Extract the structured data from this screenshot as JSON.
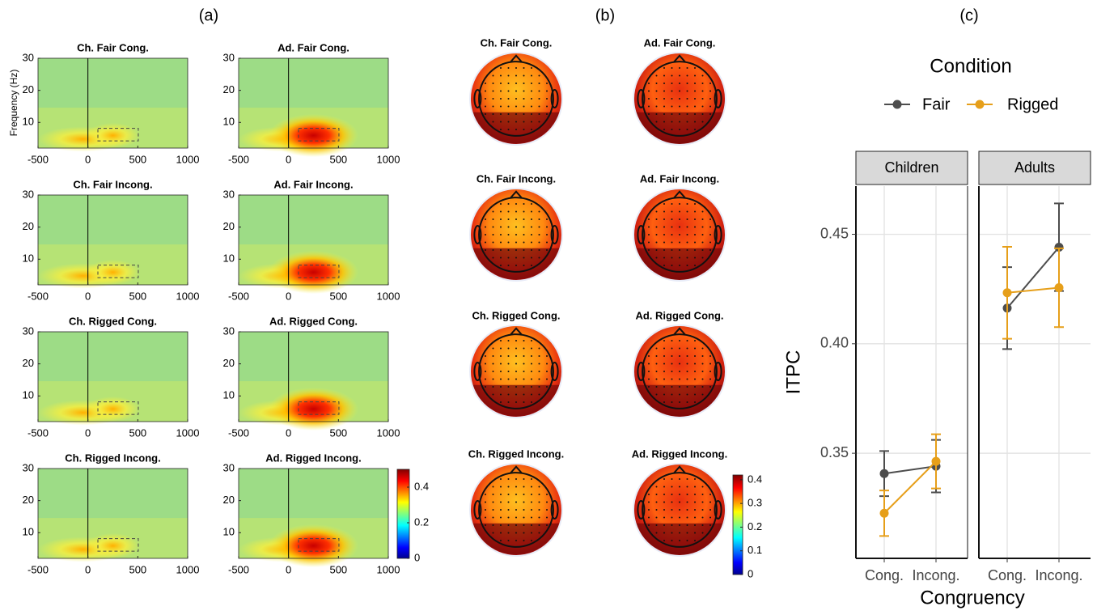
{
  "panel_labels": [
    "(a)",
    "(b)",
    "(c)"
  ],
  "heatmaps": {
    "titles": [
      "Ch. Fair Cong.",
      "Ad. Fair Cong.",
      "Ch. Fair Incong.",
      "Ad. Fair Incong.",
      "Ch. Rigged Cong.",
      "Ad. Rigged Cong.",
      "Ch. Rigged Incong.",
      "Ad. Rigged Incong."
    ],
    "ylabel": "Frequency (Hz)",
    "xlim": [
      -500,
      1000
    ],
    "ylim": [
      2,
      30
    ],
    "xticks": [
      -500,
      0,
      500,
      1000
    ],
    "yticks": [
      10,
      20,
      30
    ],
    "colorbar": {
      "lim": [
        0,
        0.5
      ],
      "ticks": [
        0,
        0.2,
        0.4
      ]
    }
  },
  "topoplots": {
    "titles": [
      "Ch. Fair Cong.",
      "Ad. Fair Cong.",
      "Ch. Fair Incong.",
      "Ad. Fair Incong.",
      "Ch. Rigged Cong.",
      "Ad. Rigged Cong.",
      "Ch. Rigged Incong.",
      "Ad. Rigged Incong."
    ],
    "colorbar": {
      "lim": [
        0,
        0.42
      ],
      "ticks": [
        0,
        0.1,
        0.2,
        0.3,
        0.4
      ]
    }
  },
  "chart_data": {
    "type": "line",
    "legend_title": "Condition",
    "xlabel": "Congruency",
    "ylabel": "ITPC",
    "facets": [
      "Children",
      "Adults"
    ],
    "categories": [
      "Cong.",
      "Incong."
    ],
    "ylim": [
      0.302,
      0.472
    ],
    "yticks": [
      0.35,
      {
        "value": 0.4,
        "label": "0.40"
      },
      0.45
    ],
    "grid": true,
    "series": [
      {
        "name": "Fair",
        "color": "#4d4d4d",
        "values": [
          [
            0.3407,
            0.3441
          ],
          [
            0.4163,
            0.4441
          ]
        ],
        "errors": [
          [
            0.0103,
            0.012
          ],
          [
            0.0187,
            0.02
          ]
        ]
      },
      {
        "name": "Rigged",
        "color": "#e69f1a",
        "values": [
          [
            0.3226,
            0.3463
          ],
          [
            0.4233,
            0.4256
          ]
        ],
        "errors": [
          [
            0.0104,
            0.0124
          ],
          [
            0.021,
            0.018
          ]
        ]
      }
    ]
  }
}
